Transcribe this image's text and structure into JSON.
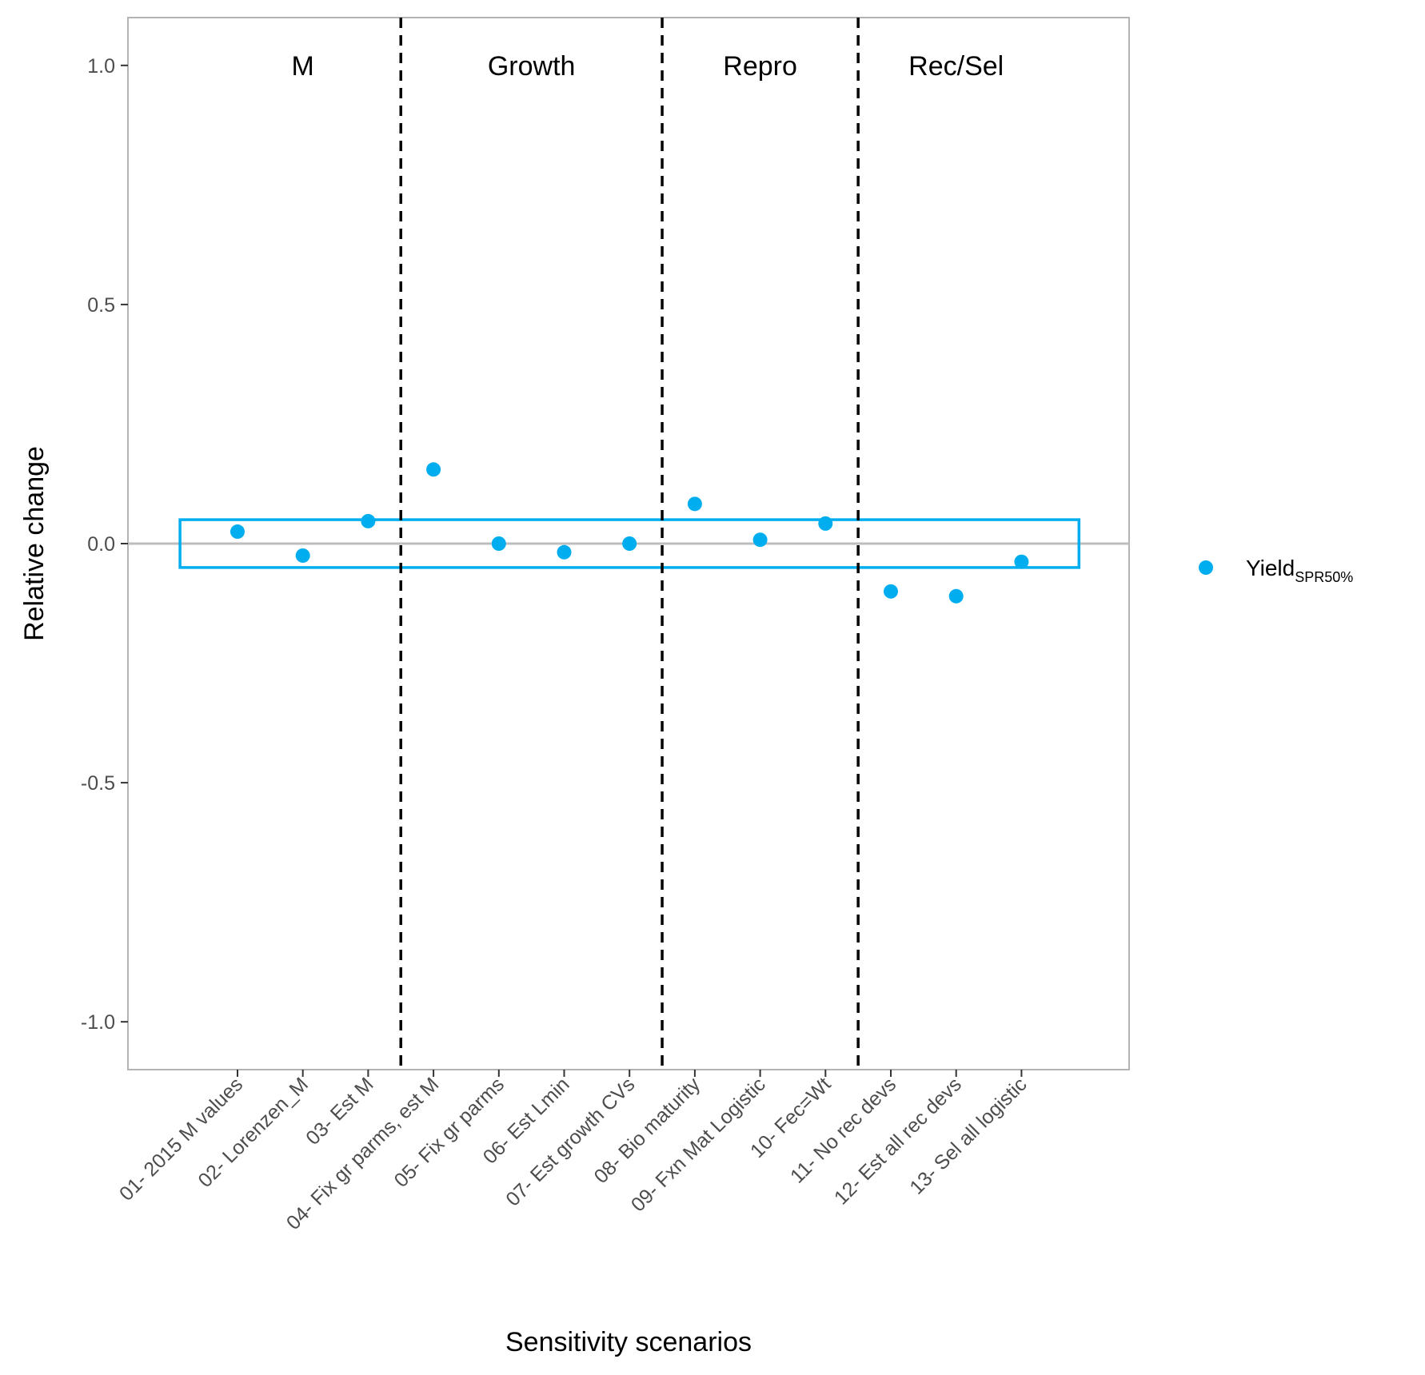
{
  "chart_data": {
    "type": "scatter",
    "xlabel": "Sensitivity scenarios",
    "ylabel": "Relative change",
    "ylim": [
      -1.1,
      1.1
    ],
    "yticks": [
      -1.0,
      -0.5,
      0.0,
      0.5,
      1.0
    ],
    "ytick_labels": [
      "-1.0",
      "-0.5",
      "0.0",
      "0.5",
      "1.0"
    ],
    "categories": [
      "01- 2015 M values",
      "02- Lorenzen_M",
      "03- Est M",
      "04- Fix gr parms, est M",
      "05- Fix gr parms",
      "06- Est Lmin",
      "07- Est growth CVs",
      "08- Bio maturity",
      "09- Fxn Mat Logistic",
      "10- Fec=Wt",
      "11- No rec devs",
      "12- Est all rec devs",
      "13- Sel all logistic"
    ],
    "series": [
      {
        "name_main": "Yield",
        "name_sub": "SPR50%",
        "color": "#00AEEF",
        "values": [
          0.025,
          -0.025,
          0.047,
          0.155,
          0.0,
          -0.018,
          0.0,
          0.083,
          0.008,
          0.042,
          -0.1,
          -0.11,
          -0.038
        ]
      }
    ],
    "groups": [
      {
        "label": "M",
        "start_index": 0,
        "end_index": 2
      },
      {
        "label": "Growth",
        "start_index": 3,
        "end_index": 6
      },
      {
        "label": "Repro",
        "start_index": 7,
        "end_index": 9
      },
      {
        "label": "Rec/Sel",
        "start_index": 10,
        "end_index": 12
      }
    ],
    "reference_line_y": 0.0,
    "band": {
      "ymin": -0.05,
      "ymax": 0.05,
      "color": "#00AEEF"
    },
    "grid": false,
    "legend_position": "right"
  }
}
